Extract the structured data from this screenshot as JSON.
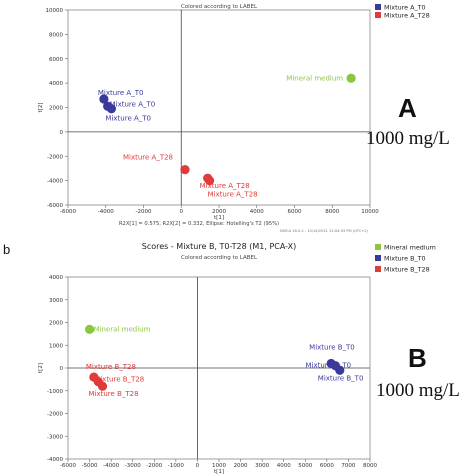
{
  "panel_b_letter": "b",
  "panel_a_heading": "A",
  "panel_a_concentration": "1000 mg/L",
  "panel_b_heading": "B",
  "panel_b_concentration": "1000 mg/L",
  "chart_data": [
    {
      "type": "scatter",
      "title": "",
      "subtitle": "Colored according to LABEL",
      "xlabel": "t[1]",
      "ylabel": "t[2]",
      "xlim": [
        -6000,
        10000
      ],
      "ylim": [
        -6000,
        10000
      ],
      "xticks": [
        -6000,
        -4000,
        -2000,
        0,
        2000,
        4000,
        6000,
        8000,
        10000
      ],
      "yticks": [
        -6000,
        -4000,
        -2000,
        0,
        2000,
        4000,
        6000,
        8000,
        10000
      ],
      "footer": "R2X[1] = 0.575, R2X[2] = 0.332, Ellipse: Hotelling's T2 (95%)",
      "software_note": "SIMCA 16.0.2 - 10/14/2021 12:04:33 PM (UTC+2)",
      "legend_position": "top-right",
      "series": [
        {
          "name": "Mixture A_T0",
          "color": "#3b3a9c",
          "points": [
            [
              -4100,
              2700
            ],
            [
              -3900,
              2100
            ],
            [
              -3700,
              1900
            ]
          ]
        },
        {
          "name": "Mixture A_T28",
          "color": "#e03a3a",
          "points": [
            [
              200,
              -3100
            ],
            [
              1400,
              -3800
            ],
            [
              1500,
              -4000
            ]
          ]
        },
        {
          "name": "Mineral medium",
          "color": "#8cc63f",
          "points": [
            [
              9000,
              4400
            ]
          ]
        }
      ],
      "legend": [
        {
          "label": "Mixture A_T0",
          "color": "#3b3a9c"
        },
        {
          "label": "Mixture A_T28",
          "color": "#e03a3a"
        }
      ],
      "annotations": [
        {
          "text": "Mineral medium",
          "x": 9000,
          "y": 4400,
          "color": "#8cc63f"
        },
        {
          "text": "Mixture A_T0",
          "x": -4100,
          "y": 2700,
          "color": "#3b3a9c"
        },
        {
          "text": "Mixture A_T0",
          "x": -3900,
          "y": 2100,
          "color": "#3b3a9c"
        },
        {
          "text": "Mixture A_T0",
          "x": -3700,
          "y": 1900,
          "color": "#3b3a9c"
        },
        {
          "text": "Mixture A_T28",
          "x": 200,
          "y": -3100,
          "color": "#e03a3a"
        },
        {
          "text": "Mixture A_T28",
          "x": 1400,
          "y": -3800,
          "color": "#e03a3a"
        },
        {
          "text": "Mixture A_T28",
          "x": 1500,
          "y": -4000,
          "color": "#e03a3a"
        }
      ]
    },
    {
      "type": "scatter",
      "title": "Scores - Mixture B, T0-T28 (M1, PCA-X)",
      "subtitle": "Colored according to LABEL",
      "xlabel": "t[1]",
      "ylabel": "t[2]",
      "xlim": [
        -6000,
        8000
      ],
      "ylim": [
        -4000,
        4000
      ],
      "xticks": [
        -6000,
        -5000,
        -4000,
        -3000,
        -2000,
        -1000,
        0,
        1000,
        2000,
        3000,
        4000,
        5000,
        6000,
        7000,
        8000
      ],
      "yticks": [
        -4000,
        -3000,
        -2000,
        -1000,
        0,
        1000,
        2000,
        3000,
        4000
      ],
      "legend_position": "top-right",
      "series": [
        {
          "name": "Mineral medium",
          "color": "#8cc63f",
          "points": [
            [
              -5000,
              1700
            ]
          ]
        },
        {
          "name": "Mixture B_T0",
          "color": "#3b3a9c",
          "points": [
            [
              6200,
              200
            ],
            [
              6400,
              100
            ],
            [
              6600,
              -100
            ]
          ]
        },
        {
          "name": "Mixture B_T28",
          "color": "#e03a3a",
          "points": [
            [
              -4800,
              -400
            ],
            [
              -4600,
              -600
            ],
            [
              -4400,
              -800
            ]
          ]
        }
      ],
      "legend": [
        {
          "label": "Mineral medium",
          "color": "#8cc63f"
        },
        {
          "label": "Mixture B_T0",
          "color": "#3b3a9c"
        },
        {
          "label": "Mixture B_T28",
          "color": "#e03a3a"
        }
      ],
      "annotations": [
        {
          "text": "Mineral medium",
          "x": -5000,
          "y": 1700,
          "color": "#8cc63f"
        },
        {
          "text": "Mixture B_T28",
          "x": -4800,
          "y": -400,
          "color": "#e03a3a"
        },
        {
          "text": "Mixture B_T28",
          "x": -4600,
          "y": -600,
          "color": "#e03a3a"
        },
        {
          "text": "Mixture B_T28",
          "x": -4400,
          "y": -800,
          "color": "#e03a3a"
        },
        {
          "text": "Mixture B_T0",
          "x": 6200,
          "y": 200,
          "color": "#3b3a9c"
        },
        {
          "text": "Mixture B_T0",
          "x": 6400,
          "y": 100,
          "color": "#3b3a9c"
        },
        {
          "text": "Mixture B_T0",
          "x": 6600,
          "y": -100,
          "color": "#3b3a9c"
        }
      ]
    }
  ]
}
